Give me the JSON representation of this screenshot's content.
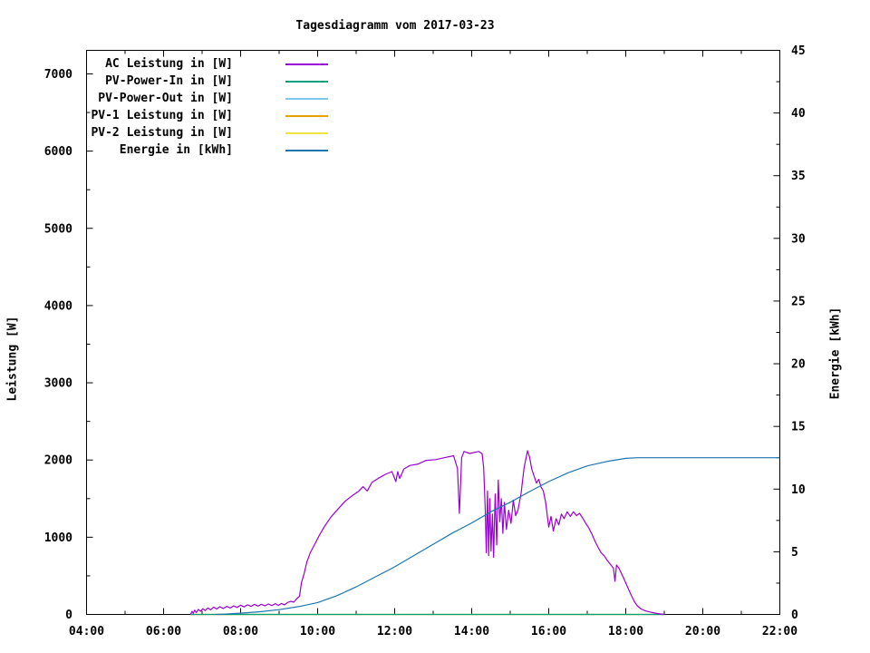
{
  "chart_data": {
    "type": "line",
    "title": "Tagesdiagramm vom 2017-03-23",
    "ylabel_left": "Leistung [W]",
    "ylabel_right": "Energie [kWh]",
    "grid": false,
    "legend_position": "top-left-inside",
    "x_axis": {
      "range": [
        4,
        22
      ],
      "ticks": [
        {
          "t": 4,
          "label": "04:00"
        },
        {
          "t": 6,
          "label": "06:00"
        },
        {
          "t": 8,
          "label": "08:00"
        },
        {
          "t": 10,
          "label": "10:00"
        },
        {
          "t": 12,
          "label": "12:00"
        },
        {
          "t": 14,
          "label": "14:00"
        },
        {
          "t": 16,
          "label": "16:00"
        },
        {
          "t": 18,
          "label": "18:00"
        },
        {
          "t": 20,
          "label": "20:00"
        },
        {
          "t": 22,
          "label": "22:00"
        }
      ],
      "minor": [
        5,
        7,
        9,
        11,
        13,
        15,
        17,
        19,
        21
      ]
    },
    "y_left": {
      "range": [
        0,
        7305
      ],
      "ticks": [
        {
          "v": 0,
          "label": "0"
        },
        {
          "v": 1000,
          "label": "1000"
        },
        {
          "v": 2000,
          "label": "2000"
        },
        {
          "v": 3000,
          "label": "3000"
        },
        {
          "v": 4000,
          "label": "4000"
        },
        {
          "v": 5000,
          "label": "5000"
        },
        {
          "v": 6000,
          "label": "6000"
        },
        {
          "v": 7000,
          "label": "7000"
        }
      ],
      "minor": [
        500,
        1500,
        2500,
        3500,
        4500,
        5500,
        6500
      ]
    },
    "y_right": {
      "range": [
        0,
        45
      ],
      "ticks": [
        {
          "v": 0,
          "label": "0"
        },
        {
          "v": 5,
          "label": "5"
        },
        {
          "v": 10,
          "label": "10"
        },
        {
          "v": 15,
          "label": "15"
        },
        {
          "v": 20,
          "label": "20"
        },
        {
          "v": 25,
          "label": "25"
        },
        {
          "v": 30,
          "label": "30"
        },
        {
          "v": 35,
          "label": "35"
        },
        {
          "v": 40,
          "label": "40"
        },
        {
          "v": 45,
          "label": "45"
        }
      ],
      "minor": [
        2.5,
        7.5,
        12.5,
        17.5,
        22.5,
        27.5,
        32.5,
        37.5,
        42.5
      ]
    },
    "legend": [
      {
        "key": "ac_power_w",
        "label": "AC Leistung in [W]",
        "color": "#9a00d3"
      },
      {
        "key": "pv_power_in_w",
        "label": "PV-Power-In in [W]",
        "color": "#00a07e"
      },
      {
        "key": "pv_power_out_w",
        "label": "PV-Power-Out in [W]",
        "color": "#7ec8ee"
      },
      {
        "key": "pv1_power_w",
        "label": "PV-1 Leistung in [W]",
        "color": "#e8a200"
      },
      {
        "key": "pv2_power_w",
        "label": "PV-2 Leistung in [W]",
        "color": "#ede53c"
      },
      {
        "key": "energy_kwh",
        "label": "Energie in [kWh]",
        "color": "#1b76b0"
      }
    ],
    "draw_order": [
      "pv_power_out_w",
      "pv1_power_w",
      "pv2_power_w",
      "pv_power_in_w",
      "ac_power_w",
      "energy_kwh"
    ],
    "series": {
      "ac_power_w": {
        "axis": "left",
        "color": "#9a00d3",
        "points": [
          [
            6.7,
            0
          ],
          [
            6.74,
            40
          ],
          [
            6.77,
            15
          ],
          [
            6.81,
            55
          ],
          [
            6.85,
            25
          ],
          [
            6.9,
            65
          ],
          [
            6.96,
            40
          ],
          [
            7.02,
            75
          ],
          [
            7.08,
            50
          ],
          [
            7.15,
            85
          ],
          [
            7.22,
            60
          ],
          [
            7.3,
            95
          ],
          [
            7.38,
            70
          ],
          [
            7.46,
            100
          ],
          [
            7.55,
            78
          ],
          [
            7.64,
            105
          ],
          [
            7.73,
            85
          ],
          [
            7.82,
            110
          ],
          [
            7.91,
            90
          ],
          [
            8.0,
            120
          ],
          [
            8.09,
            98
          ],
          [
            8.18,
            125
          ],
          [
            8.27,
            105
          ],
          [
            8.36,
            130
          ],
          [
            8.45,
            108
          ],
          [
            8.54,
            132
          ],
          [
            8.63,
            112
          ],
          [
            8.72,
            135
          ],
          [
            8.81,
            115
          ],
          [
            8.9,
            140
          ],
          [
            8.98,
            118
          ],
          [
            9.06,
            142
          ],
          [
            9.14,
            125
          ],
          [
            9.22,
            155
          ],
          [
            9.3,
            170
          ],
          [
            9.38,
            160
          ],
          [
            9.45,
            200
          ],
          [
            9.53,
            235
          ],
          [
            9.58,
            410
          ],
          [
            9.65,
            530
          ],
          [
            9.72,
            680
          ],
          [
            9.81,
            800
          ],
          [
            9.93,
            915
          ],
          [
            10.05,
            1030
          ],
          [
            10.19,
            1150
          ],
          [
            10.35,
            1265
          ],
          [
            10.52,
            1360
          ],
          [
            10.71,
            1465
          ],
          [
            10.89,
            1535
          ],
          [
            11.06,
            1595
          ],
          [
            11.18,
            1655
          ],
          [
            11.29,
            1600
          ],
          [
            11.41,
            1710
          ],
          [
            11.6,
            1770
          ],
          [
            11.76,
            1815
          ],
          [
            11.93,
            1850
          ],
          [
            12.03,
            1720
          ],
          [
            12.08,
            1850
          ],
          [
            12.13,
            1760
          ],
          [
            12.24,
            1885
          ],
          [
            12.4,
            1930
          ],
          [
            12.59,
            1945
          ],
          [
            12.82,
            1995
          ],
          [
            13.06,
            2005
          ],
          [
            13.29,
            2030
          ],
          [
            13.53,
            2055
          ],
          [
            13.63,
            1890
          ],
          [
            13.68,
            1310
          ],
          [
            13.74,
            2030
          ],
          [
            13.8,
            2110
          ],
          [
            13.95,
            2085
          ],
          [
            14.08,
            2100
          ],
          [
            14.18,
            2110
          ],
          [
            14.27,
            2080
          ],
          [
            14.31,
            1900
          ],
          [
            14.35,
            1380
          ],
          [
            14.38,
            800
          ],
          [
            14.41,
            1600
          ],
          [
            14.44,
            760
          ],
          [
            14.47,
            1500
          ],
          [
            14.5,
            820
          ],
          [
            14.54,
            1300
          ],
          [
            14.57,
            740
          ],
          [
            14.61,
            1560
          ],
          [
            14.65,
            900
          ],
          [
            14.69,
            1740
          ],
          [
            14.73,
            1200
          ],
          [
            14.77,
            1500
          ],
          [
            14.81,
            1050
          ],
          [
            14.85,
            1450
          ],
          [
            14.9,
            1100
          ],
          [
            14.96,
            1350
          ],
          [
            15.02,
            1180
          ],
          [
            15.08,
            1480
          ],
          [
            15.14,
            1280
          ],
          [
            15.2,
            1350
          ],
          [
            15.28,
            1560
          ],
          [
            15.36,
            1900
          ],
          [
            15.45,
            2120
          ],
          [
            15.5,
            2040
          ],
          [
            15.56,
            1880
          ],
          [
            15.62,
            1790
          ],
          [
            15.68,
            1700
          ],
          [
            15.74,
            1750
          ],
          [
            15.8,
            1650
          ],
          [
            15.86,
            1600
          ],
          [
            15.92,
            1450
          ],
          [
            16.0,
            1130
          ],
          [
            16.06,
            1270
          ],
          [
            16.12,
            1080
          ],
          [
            16.19,
            1240
          ],
          [
            16.26,
            1160
          ],
          [
            16.33,
            1300
          ],
          [
            16.4,
            1240
          ],
          [
            16.48,
            1330
          ],
          [
            16.56,
            1270
          ],
          [
            16.64,
            1330
          ],
          [
            16.72,
            1280
          ],
          [
            16.8,
            1310
          ],
          [
            16.88,
            1250
          ],
          [
            16.96,
            1180
          ],
          [
            17.04,
            1120
          ],
          [
            17.12,
            1040
          ],
          [
            17.2,
            950
          ],
          [
            17.28,
            870
          ],
          [
            17.36,
            800
          ],
          [
            17.44,
            760
          ],
          [
            17.52,
            700
          ],
          [
            17.6,
            650
          ],
          [
            17.68,
            600
          ],
          [
            17.72,
            430
          ],
          [
            17.76,
            640
          ],
          [
            17.82,
            600
          ],
          [
            17.9,
            520
          ],
          [
            17.98,
            430
          ],
          [
            18.06,
            340
          ],
          [
            18.14,
            250
          ],
          [
            18.22,
            170
          ],
          [
            18.3,
            110
          ],
          [
            18.4,
            70
          ],
          [
            18.52,
            45
          ],
          [
            18.66,
            28
          ],
          [
            18.82,
            12
          ],
          [
            19.0,
            0
          ]
        ]
      },
      "pv_power_in_w": {
        "axis": "left",
        "color": "#00a07e",
        "points": [
          [
            6.7,
            0
          ],
          [
            19.0,
            0
          ]
        ]
      },
      "pv_power_out_w": {
        "axis": "left",
        "color": "#7ec8ee",
        "points": [
          [
            6.7,
            0
          ],
          [
            19.0,
            0
          ]
        ]
      },
      "pv1_power_w": {
        "axis": "left",
        "color": "#e8a200",
        "points": [
          [
            6.7,
            0
          ],
          [
            19.0,
            0
          ]
        ]
      },
      "pv2_power_w": {
        "axis": "left",
        "color": "#ede53c",
        "points": [
          [
            6.7,
            0
          ],
          [
            19.0,
            0
          ]
        ]
      },
      "energy_kwh": {
        "axis": "right",
        "color": "#1b76b0",
        "points": [
          [
            7.35,
            0
          ],
          [
            7.6,
            0.03
          ],
          [
            8.0,
            0.1
          ],
          [
            8.5,
            0.22
          ],
          [
            9.0,
            0.38
          ],
          [
            9.5,
            0.62
          ],
          [
            10.0,
            0.95
          ],
          [
            10.5,
            1.5
          ],
          [
            11.0,
            2.2
          ],
          [
            11.5,
            3.0
          ],
          [
            12.0,
            3.8
          ],
          [
            12.5,
            4.7
          ],
          [
            13.0,
            5.6
          ],
          [
            13.5,
            6.5
          ],
          [
            14.0,
            7.3
          ],
          [
            14.5,
            8.2
          ],
          [
            15.0,
            8.95
          ],
          [
            15.5,
            9.8
          ],
          [
            16.0,
            10.6
          ],
          [
            16.5,
            11.3
          ],
          [
            17.0,
            11.85
          ],
          [
            17.5,
            12.2
          ],
          [
            18.0,
            12.45
          ],
          [
            18.3,
            12.5
          ],
          [
            22.0,
            12.5
          ]
        ]
      }
    }
  }
}
